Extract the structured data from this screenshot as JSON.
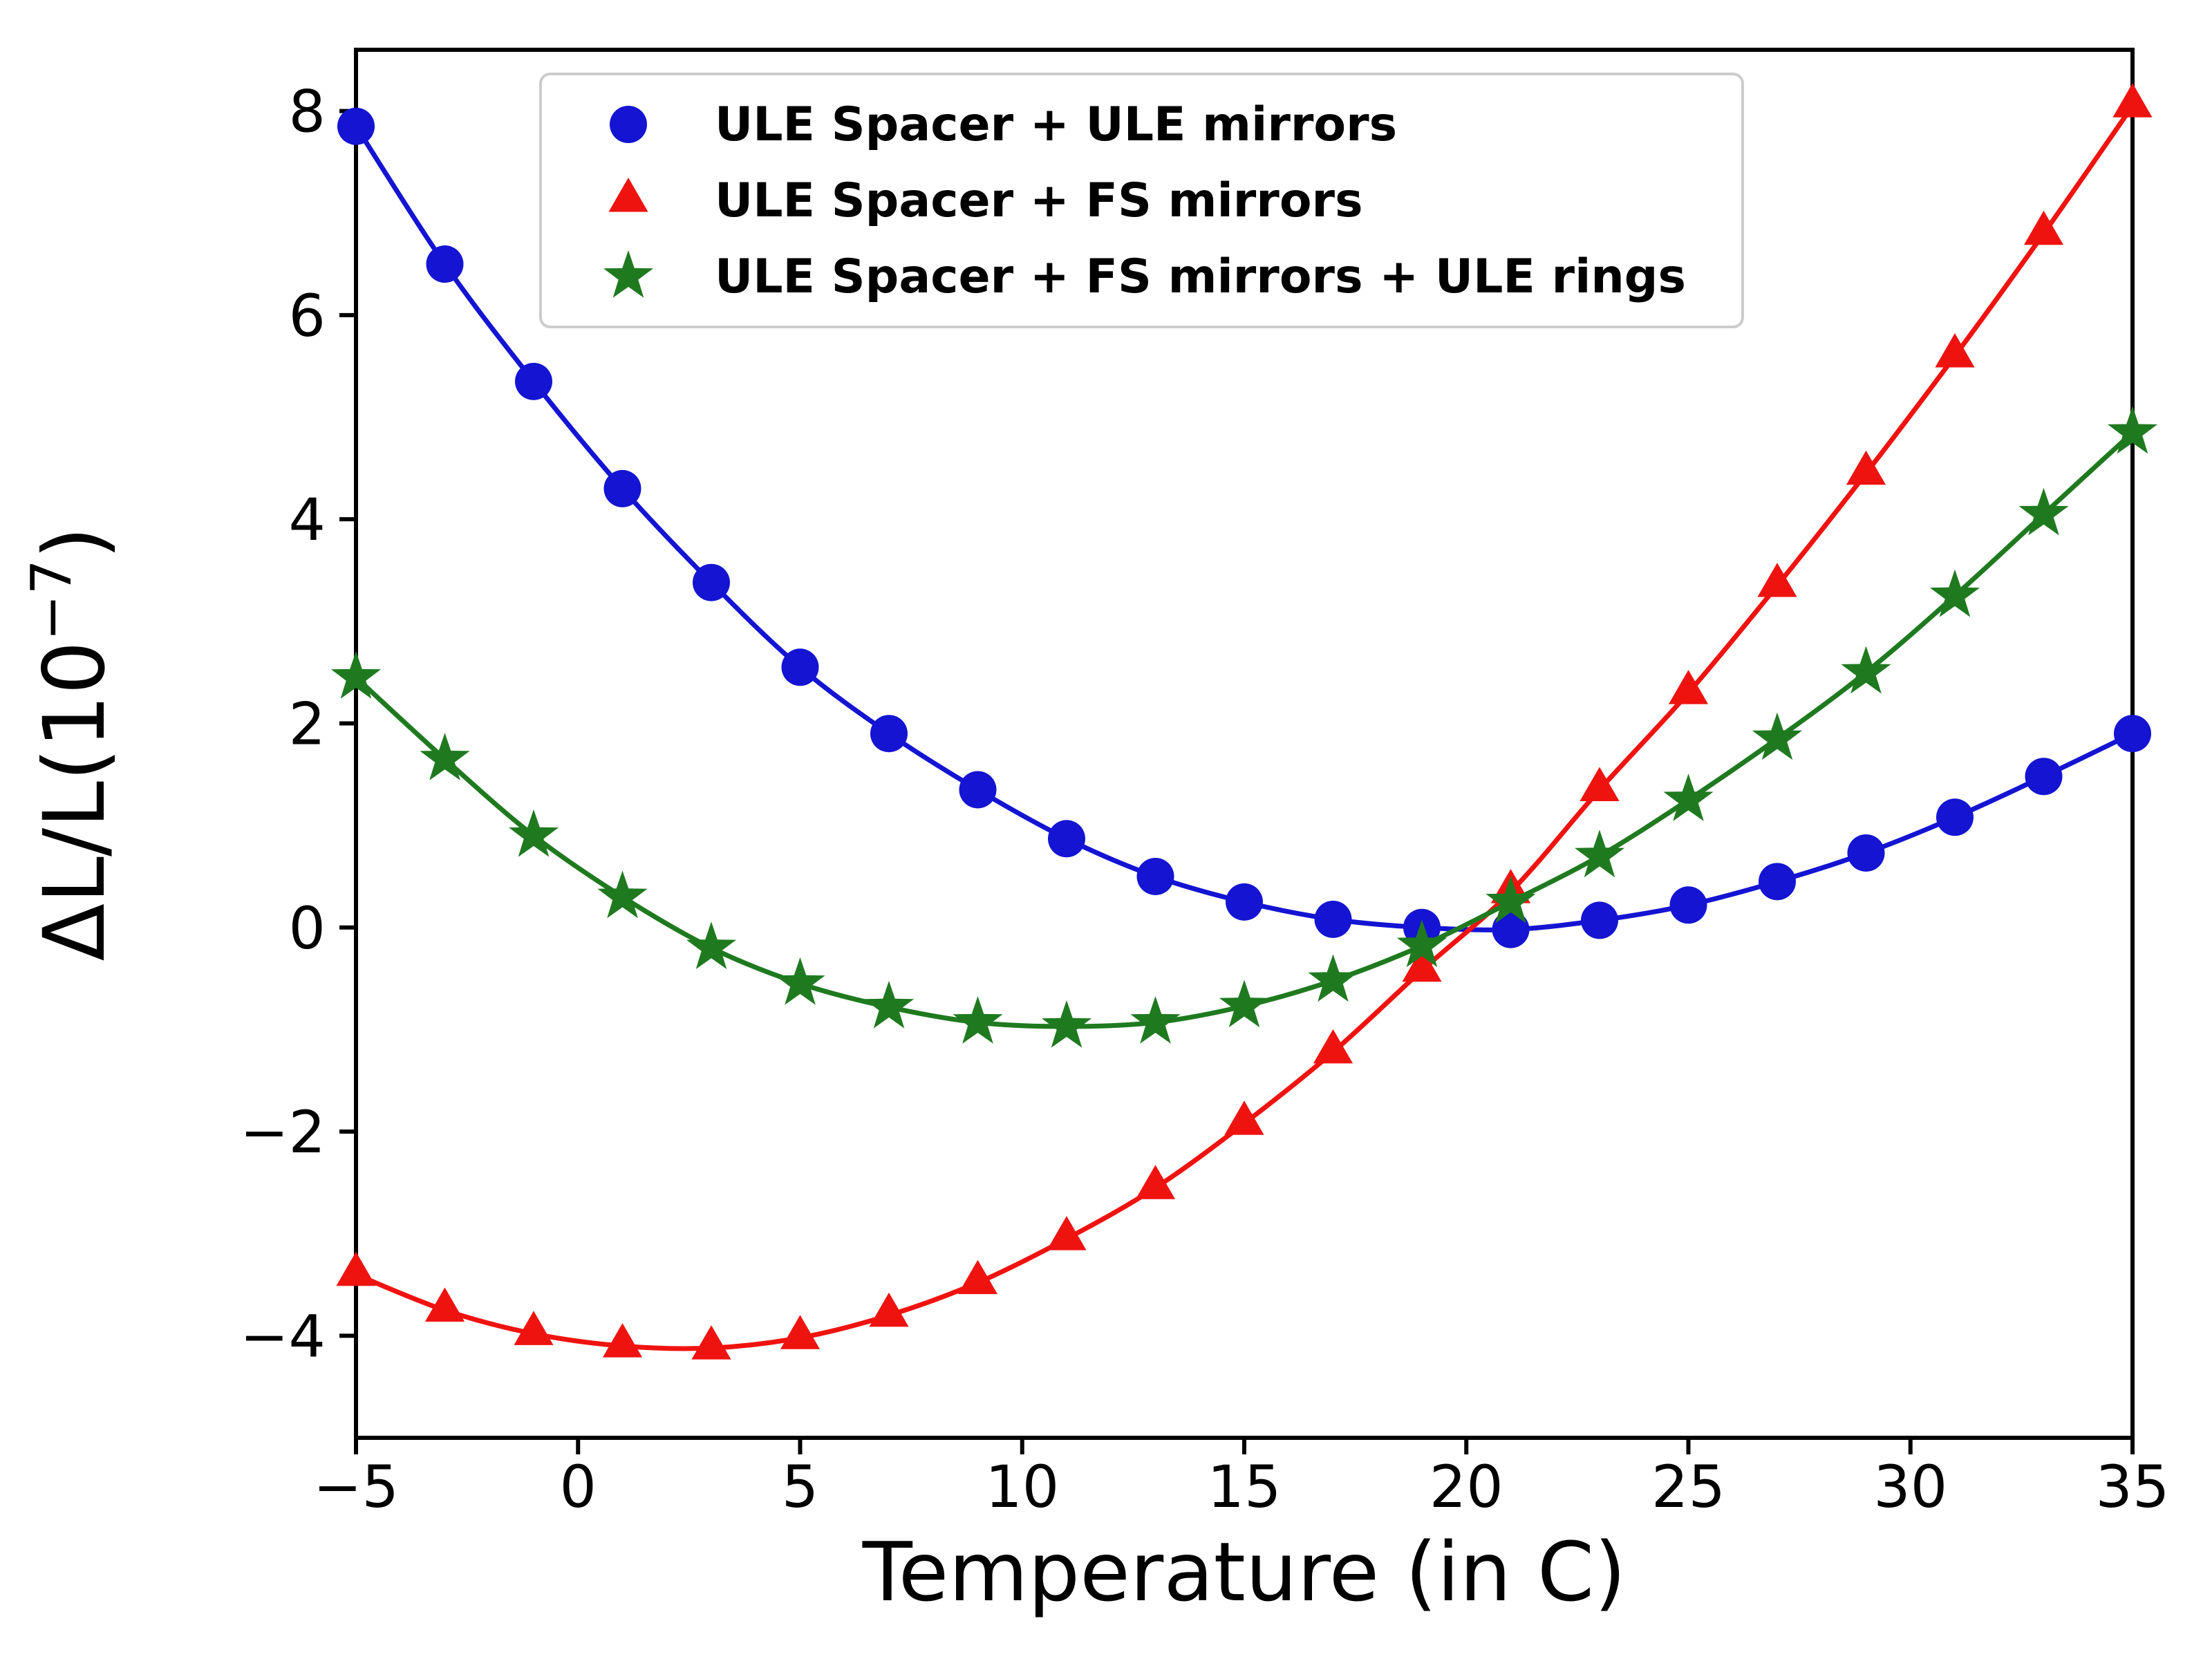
{
  "colors": {
    "background": "#ffffff",
    "axis": "#000000",
    "legend_border": "#cccccc"
  },
  "chart_data": {
    "type": "line",
    "title": "",
    "xlabel": "Temperature (in C)",
    "ylabel": "ΔL/L(10^{−7})",
    "xlim": [
      -5,
      35
    ],
    "ylim": [
      -5.0,
      8.6
    ],
    "grid": false,
    "legend_position": "upper left",
    "xticks": {
      "values": [
        -5,
        0,
        5,
        10,
        15,
        20,
        25,
        30,
        35
      ],
      "labels": [
        "−5",
        "0",
        "5",
        "10",
        "15",
        "20",
        "25",
        "30",
        "35"
      ]
    },
    "yticks": {
      "values": [
        -4,
        -2,
        0,
        2,
        4,
        6,
        8
      ],
      "labels": [
        "−4",
        "−2",
        "0",
        "2",
        "4",
        "6",
        "8"
      ]
    },
    "x": [
      -5,
      -3,
      -1,
      1,
      3,
      5,
      7,
      9,
      11,
      13,
      15,
      17,
      19,
      21,
      23,
      25,
      27,
      29,
      31,
      33,
      35
    ],
    "series": [
      {
        "name": "ULE Spacer + ULE mirrors",
        "color": "#1414d2",
        "marker": "circle",
        "values": [
          7.85,
          6.5,
          5.35,
          4.3,
          3.38,
          2.55,
          1.9,
          1.35,
          0.87,
          0.5,
          0.25,
          0.08,
          0.0,
          -0.02,
          0.07,
          0.22,
          0.45,
          0.73,
          1.08,
          1.48,
          1.9
        ]
      },
      {
        "name": "ULE Spacer + FS mirrors",
        "color": "#ef1310",
        "marker": "triangle",
        "values": [
          -3.4,
          -3.75,
          -3.98,
          -4.1,
          -4.12,
          -4.02,
          -3.8,
          -3.48,
          -3.05,
          -2.55,
          -1.92,
          -1.22,
          -0.42,
          0.35,
          1.35,
          2.3,
          3.35,
          4.45,
          5.6,
          6.8,
          8.05
        ]
      },
      {
        "name": "ULE Spacer + FS mirrors + ULE rings",
        "color": "#1f7a1f",
        "marker": "star",
        "values": [
          2.45,
          1.65,
          0.9,
          0.3,
          -0.2,
          -0.55,
          -0.78,
          -0.93,
          -0.97,
          -0.93,
          -0.77,
          -0.52,
          -0.18,
          0.25,
          0.7,
          1.25,
          1.85,
          2.5,
          3.25,
          4.05,
          4.85
        ]
      }
    ]
  }
}
